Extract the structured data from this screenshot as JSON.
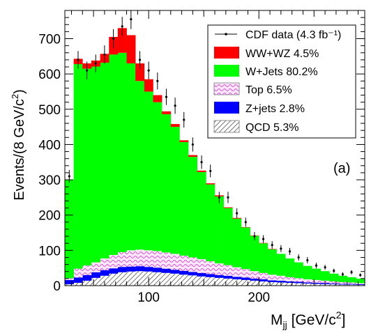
{
  "chart_data": {
    "type": "bar",
    "stacked": true,
    "x_bin_edges": [
      24,
      32,
      40,
      48,
      56,
      64,
      72,
      80,
      88,
      96,
      104,
      112,
      120,
      128,
      136,
      144,
      152,
      160,
      168,
      176,
      184,
      192,
      200,
      208,
      216,
      224,
      232,
      240,
      248,
      256,
      264,
      272,
      280,
      288,
      296
    ],
    "series": [
      {
        "name": "QCD 5.3%",
        "color": "#ffffff",
        "hatch": "diagonal",
        "values": [
          4,
          8,
          14,
          22,
          28,
          34,
          38,
          40,
          41,
          40,
          38,
          36,
          34,
          31,
          29,
          26,
          24,
          22,
          20,
          18,
          16,
          14,
          12,
          10,
          9,
          8,
          7,
          6,
          5,
          4,
          4,
          3,
          3,
          2
        ]
      },
      {
        "name": "Z+jets 2.8%",
        "color": "#0000ff",
        "values": [
          12,
          15,
          16,
          16,
          16,
          15,
          15,
          14,
          14,
          13,
          13,
          12,
          11,
          11,
          10,
          10,
          9,
          8,
          8,
          7,
          7,
          6,
          6,
          5,
          5,
          4,
          4,
          3,
          3,
          3,
          2,
          2,
          2,
          2
        ]
      },
      {
        "name": "Top 6.5%",
        "color": "#ffccff",
        "hatch": "wave",
        "values": [
          5,
          25,
          27,
          28,
          33,
          38,
          42,
          46,
          47,
          47,
          47,
          46,
          45,
          43,
          41,
          39,
          36,
          33,
          30,
          27,
          24,
          21,
          18,
          16,
          14,
          12,
          10,
          9,
          8,
          7,
          6,
          5,
          4,
          3
        ]
      },
      {
        "name": "W+Jets 80.2%",
        "color": "#00ff00",
        "values": [
          279,
          580,
          558,
          555,
          555,
          568,
          565,
          530,
          478,
          450,
          422,
          392,
          360,
          322,
          285,
          247,
          218,
          190,
          162,
          138,
          118,
          100,
          84,
          72,
          62,
          53,
          45,
          38,
          32,
          27,
          22,
          18,
          15,
          13
        ]
      },
      {
        "name": "WW+WZ 4.5%",
        "color": "#ff0000",
        "values": [
          0,
          15,
          15,
          17,
          25,
          50,
          70,
          80,
          50,
          35,
          20,
          8,
          8,
          5,
          5,
          4,
          3,
          3,
          2,
          2,
          1,
          1,
          1,
          1,
          0,
          0,
          0,
          0,
          0,
          0,
          0,
          0,
          0,
          0
        ]
      }
    ],
    "data": {
      "name": "CDF data (4.3 fb⁻¹)",
      "x": [
        28,
        36,
        44,
        52,
        60,
        68,
        76,
        84,
        92,
        100,
        108,
        116,
        124,
        132,
        140,
        148,
        156,
        164,
        172,
        180,
        188,
        196,
        204,
        212,
        220,
        228,
        236,
        244,
        252,
        260,
        268,
        276,
        284,
        292
      ],
      "y": [
        310,
        640,
        610,
        630,
        655,
        700,
        735,
        755,
        640,
        610,
        580,
        535,
        510,
        470,
        400,
        350,
        325,
        250,
        250,
        205,
        180,
        140,
        132,
        115,
        105,
        97,
        80,
        72,
        57,
        52,
        42,
        32,
        38,
        30
      ],
      "err": [
        18,
        25,
        25,
        25,
        26,
        27,
        27,
        28,
        25,
        25,
        24,
        23,
        23,
        22,
        20,
        19,
        18,
        16,
        16,
        14,
        13,
        12,
        11,
        11,
        10,
        10,
        9,
        9,
        8,
        7,
        6,
        6,
        6,
        5
      ]
    },
    "xlabel": "M",
    "xlabel_sub": "jj",
    "xlabel_unit": " [GeV/c",
    "xlabel_sup": "2",
    "xlabel_end": "]",
    "ylabel": "Events/(8 GeV/c",
    "ylabel_sup": "2",
    "ylabel_end": ")",
    "xlim": [
      24,
      296
    ],
    "ylim": [
      0,
      780
    ],
    "xticks": [
      100,
      200
    ],
    "yticks": [
      0,
      100,
      200,
      300,
      400,
      500,
      600,
      700
    ],
    "panel_label": "(a)",
    "legend_position": "top-right",
    "grid": false
  }
}
